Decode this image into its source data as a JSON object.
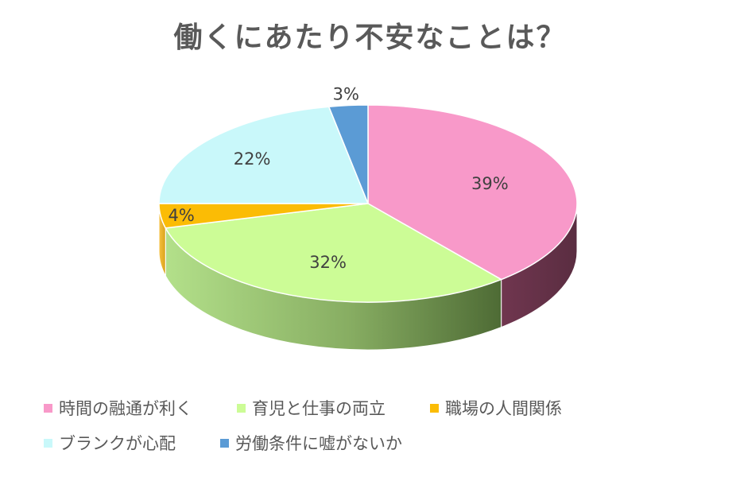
{
  "chart_data": {
    "type": "pie",
    "title": "働くにあたり不安なことは？",
    "categories": [
      "時間の融通が利く",
      "育児と仕事の両立",
      "職場の人間関係",
      "ブランクが心配",
      "労働条件に嘘がないか"
    ],
    "values": [
      39,
      32,
      4,
      22,
      3
    ],
    "labels": [
      "39%",
      "32%",
      "4%",
      "22%",
      "3%"
    ],
    "colors": [
      "#f899c9",
      "#ccfc96",
      "#fbbc05",
      "#c9f8fa",
      "#5b9bd5"
    ],
    "side_colors": [
      "#6b3a4f",
      "#4e6e3a",
      "#8a6a10",
      "#5a8a8c",
      "#2e5a80"
    ],
    "legend_position": "bottom",
    "three_d": true
  }
}
